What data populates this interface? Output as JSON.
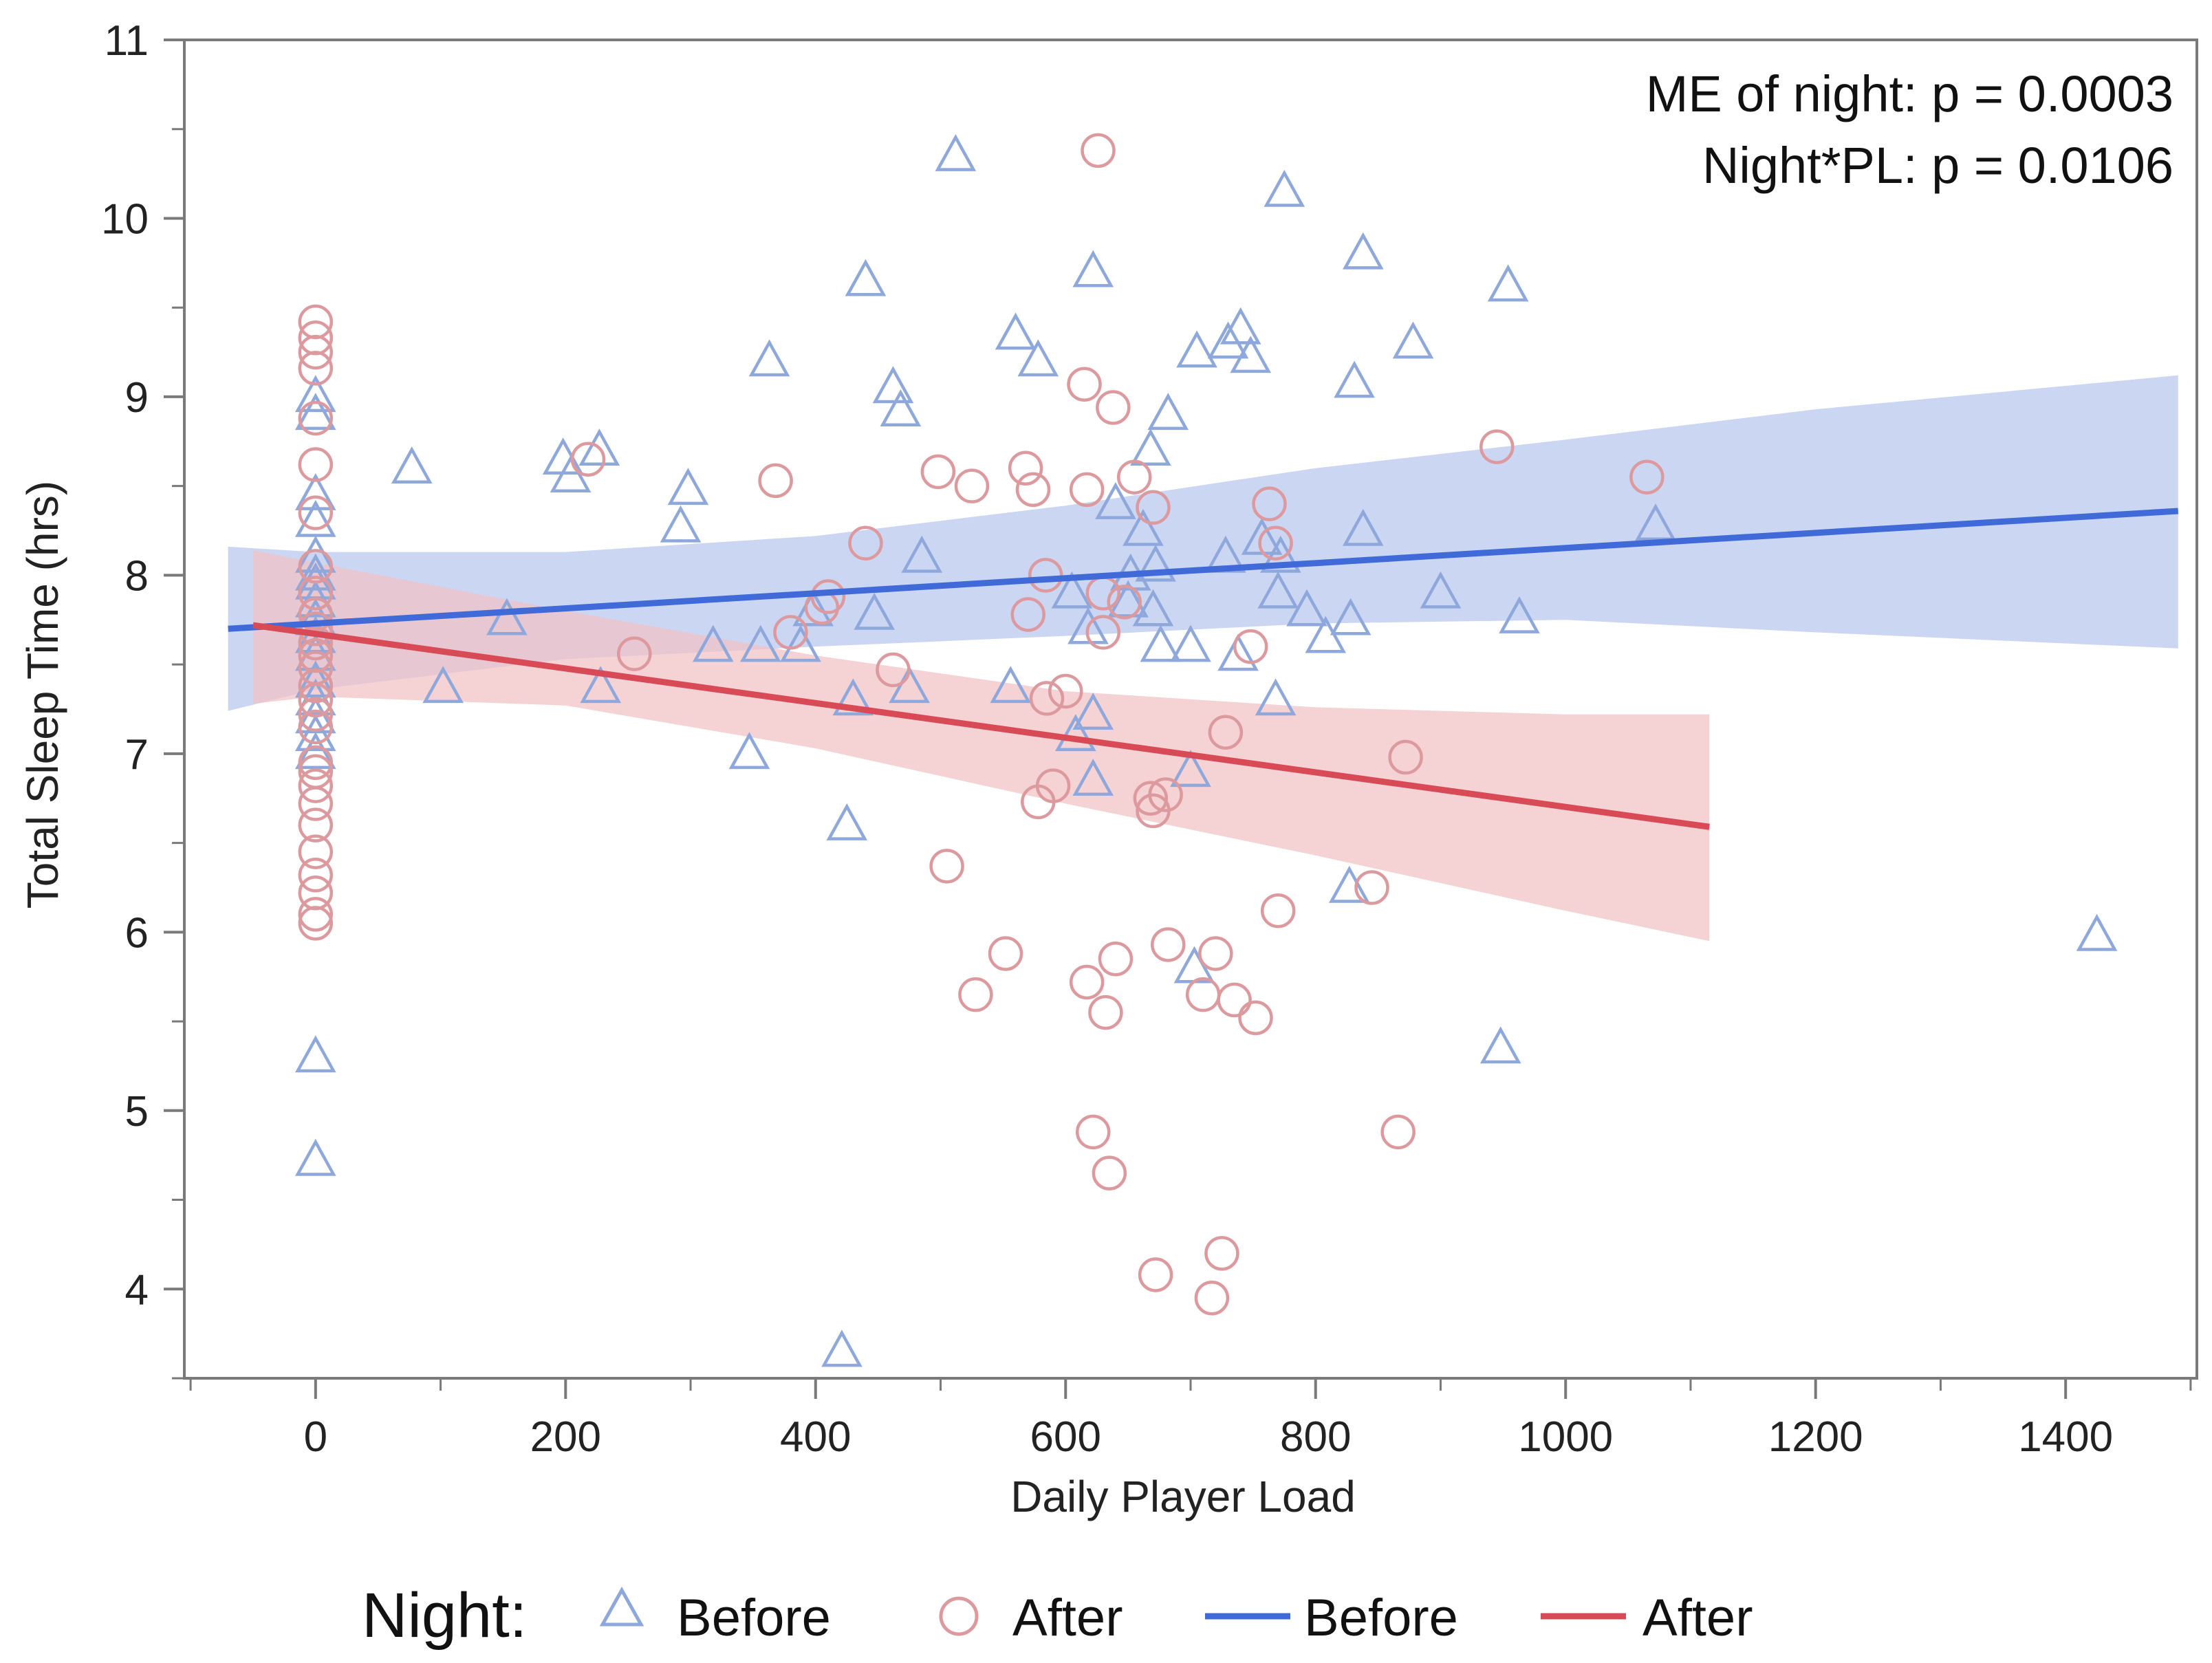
{
  "chart_data": {
    "type": "scatter",
    "title": "",
    "xlabel": "Daily Player Load",
    "ylabel": "Total Sleep Time (hrs)",
    "xlim": [
      -105,
      1505
    ],
    "ylim": [
      3.5,
      11.0
    ],
    "xticks": [
      0,
      200,
      400,
      600,
      800,
      1000,
      1200,
      1400
    ],
    "yticks": [
      4,
      5,
      6,
      7,
      8,
      9,
      10,
      11
    ],
    "grid": false,
    "annotations": [
      "ME of night: p = 0.0003",
      "Night*PL: p = 0.0106"
    ],
    "legend": {
      "title": "Night:",
      "entries": [
        {
          "label": "Before",
          "kind": "marker",
          "series": "Before"
        },
        {
          "label": "After",
          "kind": "marker",
          "series": "After"
        },
        {
          "label": "Before",
          "kind": "line",
          "series": "Before"
        },
        {
          "label": "After",
          "kind": "line",
          "series": "After"
        }
      ]
    },
    "series": [
      {
        "name": "Before",
        "marker": "triangle",
        "color": "#8fa8dc",
        "points": [
          [
            0,
            8.9
          ],
          [
            0,
            9.0
          ],
          [
            0,
            8.45
          ],
          [
            0,
            8.3
          ],
          [
            0,
            8.1
          ],
          [
            0,
            8.0
          ],
          [
            0,
            7.95
          ],
          [
            0,
            7.85
          ],
          [
            0,
            7.75
          ],
          [
            0,
            7.65
          ],
          [
            0,
            7.55
          ],
          [
            0,
            7.4
          ],
          [
            0,
            7.3
          ],
          [
            0,
            7.2
          ],
          [
            0,
            7.1
          ],
          [
            0,
            7.0
          ],
          [
            0,
            5.3
          ],
          [
            0,
            4.72
          ],
          [
            77,
            8.6
          ],
          [
            102,
            7.37
          ],
          [
            153,
            7.75
          ],
          [
            198,
            8.65
          ],
          [
            204,
            8.55
          ],
          [
            227,
            8.7
          ],
          [
            228,
            7.37
          ],
          [
            298,
            8.48
          ],
          [
            292,
            8.27
          ],
          [
            318,
            7.6
          ],
          [
            347,
            7.0
          ],
          [
            356,
            7.6
          ],
          [
            363,
            9.2
          ],
          [
            388,
            7.6
          ],
          [
            398,
            7.8
          ],
          [
            421,
            3.65
          ],
          [
            425,
            6.6
          ],
          [
            430,
            7.3
          ],
          [
            440,
            9.65
          ],
          [
            447,
            7.78
          ],
          [
            462,
            9.05
          ],
          [
            468,
            8.92
          ],
          [
            475,
            7.37
          ],
          [
            485,
            8.1
          ],
          [
            512,
            10.35
          ],
          [
            556,
            7.37
          ],
          [
            560,
            9.35
          ],
          [
            578,
            9.2
          ],
          [
            605,
            7.9
          ],
          [
            608,
            7.1
          ],
          [
            618,
            7.7
          ],
          [
            622,
            9.7
          ],
          [
            622,
            7.22
          ],
          [
            622,
            6.85
          ],
          [
            640,
            8.4
          ],
          [
            650,
            7.85
          ],
          [
            652,
            8.0
          ],
          [
            662,
            8.25
          ],
          [
            668,
            8.7
          ],
          [
            670,
            7.8
          ],
          [
            672,
            8.05
          ],
          [
            676,
            7.6
          ],
          [
            682,
            8.9
          ],
          [
            700,
            7.6
          ],
          [
            700,
            6.9
          ],
          [
            703,
            5.8
          ],
          [
            705,
            9.25
          ],
          [
            728,
            8.1
          ],
          [
            730,
            9.3
          ],
          [
            738,
            7.55
          ],
          [
            740,
            9.38
          ],
          [
            748,
            9.22
          ],
          [
            757,
            8.2
          ],
          [
            768,
            7.3
          ],
          [
            770,
            7.9
          ],
          [
            772,
            8.1
          ],
          [
            775,
            10.15
          ],
          [
            793,
            7.8
          ],
          [
            808,
            7.65
          ],
          [
            828,
            7.75
          ],
          [
            831,
            9.08
          ],
          [
            838,
            9.8
          ],
          [
            838,
            8.25
          ],
          [
            827,
            6.25
          ],
          [
            878,
            9.3
          ],
          [
            900,
            7.9
          ],
          [
            948,
            5.35
          ],
          [
            954,
            9.62
          ],
          [
            963,
            7.76
          ],
          [
            1072,
            8.28
          ],
          [
            1425,
            5.98
          ]
        ]
      },
      {
        "name": "After",
        "marker": "circle",
        "color": "#dd9a9e",
        "points": [
          [
            0,
            9.42
          ],
          [
            0,
            9.33
          ],
          [
            0,
            9.25
          ],
          [
            0,
            9.16
          ],
          [
            0,
            8.88
          ],
          [
            0,
            8.62
          ],
          [
            0,
            8.35
          ],
          [
            0,
            8.05
          ],
          [
            0,
            7.9
          ],
          [
            0,
            7.78
          ],
          [
            0,
            7.7
          ],
          [
            0,
            7.62
          ],
          [
            0,
            7.55
          ],
          [
            0,
            7.48
          ],
          [
            0,
            7.38
          ],
          [
            0,
            7.3
          ],
          [
            0,
            7.22
          ],
          [
            0,
            7.15
          ],
          [
            0,
            6.95
          ],
          [
            0,
            6.9
          ],
          [
            0,
            6.82
          ],
          [
            0,
            6.72
          ],
          [
            0,
            6.6
          ],
          [
            0,
            6.45
          ],
          [
            0,
            6.32
          ],
          [
            0,
            6.22
          ],
          [
            0,
            6.1
          ],
          [
            0,
            6.05
          ],
          [
            218,
            8.65
          ],
          [
            255,
            7.56
          ],
          [
            368,
            8.53
          ],
          [
            380,
            7.68
          ],
          [
            405,
            7.82
          ],
          [
            410,
            7.88
          ],
          [
            440,
            8.18
          ],
          [
            462,
            7.47
          ],
          [
            498,
            8.58
          ],
          [
            505,
            6.37
          ],
          [
            525,
            8.5
          ],
          [
            528,
            5.65
          ],
          [
            552,
            5.88
          ],
          [
            568,
            8.6
          ],
          [
            570,
            7.78
          ],
          [
            574,
            8.48
          ],
          [
            578,
            6.73
          ],
          [
            584,
            8.0
          ],
          [
            585,
            7.31
          ],
          [
            590,
            6.82
          ],
          [
            600,
            7.35
          ],
          [
            615,
            9.07
          ],
          [
            617,
            8.48
          ],
          [
            617,
            5.72
          ],
          [
            622,
            4.88
          ],
          [
            626,
            10.38
          ],
          [
            630,
            7.9
          ],
          [
            630,
            7.68
          ],
          [
            632,
            5.55
          ],
          [
            635,
            4.65
          ],
          [
            638,
            8.94
          ],
          [
            640,
            5.85
          ],
          [
            647,
            7.85
          ],
          [
            655,
            8.55
          ],
          [
            668,
            6.75
          ],
          [
            670,
            8.38
          ],
          [
            670,
            6.68
          ],
          [
            672,
            4.08
          ],
          [
            680,
            6.77
          ],
          [
            682,
            5.93
          ],
          [
            710,
            5.65
          ],
          [
            717,
            3.95
          ],
          [
            720,
            5.88
          ],
          [
            725,
            4.2
          ],
          [
            728,
            7.12
          ],
          [
            735,
            5.62
          ],
          [
            748,
            7.6
          ],
          [
            752,
            5.52
          ],
          [
            763,
            8.4
          ],
          [
            768,
            8.18
          ],
          [
            770,
            6.12
          ],
          [
            845,
            6.25
          ],
          [
            866,
            4.88
          ],
          [
            872,
            6.98
          ],
          [
            945,
            8.72
          ],
          [
            1065,
            8.55
          ]
        ]
      }
    ],
    "fit_lines": [
      {
        "name": "Before",
        "color": "#3f6ad8",
        "band_color": "#b7c6ef",
        "x": [
          -70,
          1490
        ],
        "y": [
          7.7,
          8.36
        ],
        "ci": {
          "x": [
            -70,
            0,
            200,
            400,
            600,
            800,
            1000,
            1200,
            1490
          ],
          "lower": [
            7.24,
            7.36,
            7.53,
            7.6,
            7.66,
            7.73,
            7.75,
            7.68,
            7.59
          ],
          "upper": [
            8.16,
            8.13,
            8.13,
            8.22,
            8.39,
            8.6,
            8.76,
            8.93,
            9.12
          ]
        }
      },
      {
        "name": "After",
        "color": "#d84a55",
        "band_color": "#f1c0c3",
        "x": [
          -50,
          1115
        ],
        "y": [
          7.72,
          6.59
        ],
        "ci": {
          "x": [
            -50,
            0,
            200,
            400,
            600,
            800,
            1000,
            1115
          ],
          "lower": [
            7.28,
            7.32,
            7.27,
            7.03,
            6.72,
            6.43,
            6.12,
            5.95
          ],
          "upper": [
            8.14,
            8.07,
            7.8,
            7.55,
            7.35,
            7.26,
            7.22,
            7.22
          ]
        }
      }
    ]
  }
}
